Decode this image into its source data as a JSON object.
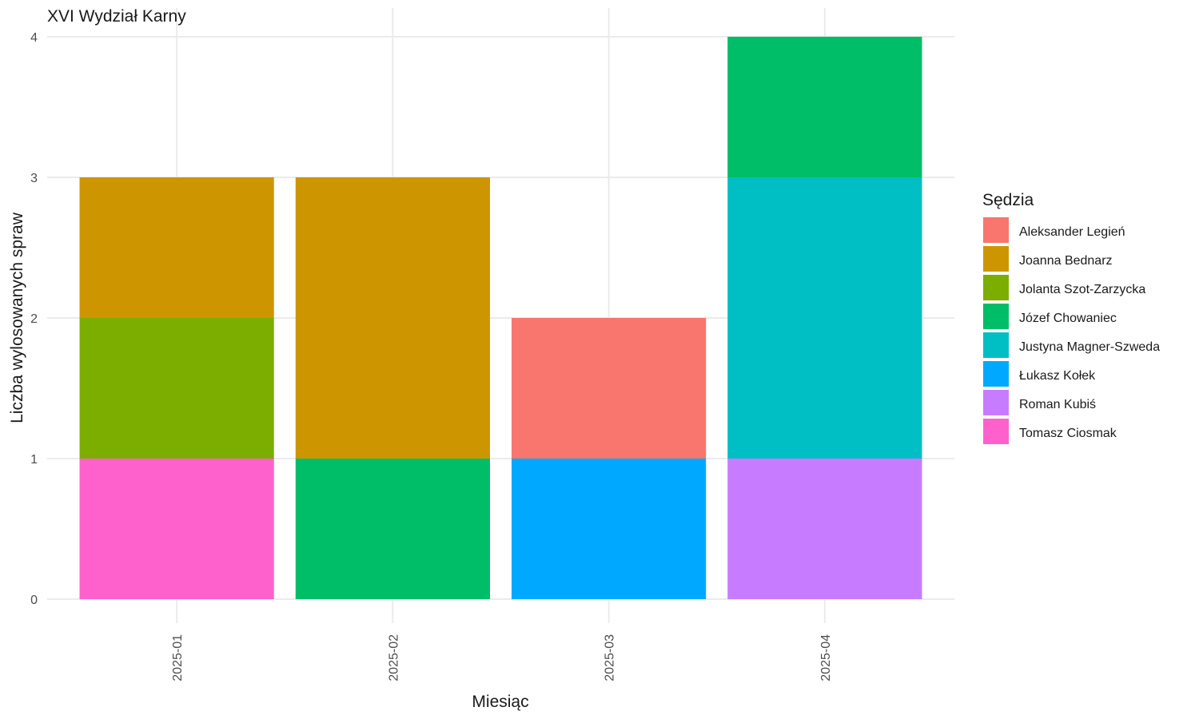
{
  "chart_data": {
    "type": "bar",
    "stacked": true,
    "title": "XVI Wydział Karny",
    "xlabel": "Miesiąc",
    "ylabel": "Liczba wylosowanych spraw",
    "ylim": [
      0,
      4
    ],
    "yticks": [
      0,
      1,
      2,
      3,
      4
    ],
    "categories": [
      "2025-01",
      "2025-02",
      "2025-03",
      "2025-04"
    ],
    "grid": true,
    "legend": {
      "title": "Sędzia",
      "position": "right"
    },
    "series": [
      {
        "name": "Aleksander Legień",
        "color": "#F8766D",
        "values": [
          0,
          0,
          1,
          0
        ]
      },
      {
        "name": "Joanna Bednarz",
        "color": "#CD9600",
        "values": [
          1,
          2,
          0,
          0
        ]
      },
      {
        "name": "Jolanta Szot-Zarzycka",
        "color": "#7CAE00",
        "values": [
          1,
          0,
          0,
          0
        ]
      },
      {
        "name": "Józef Chowaniec",
        "color": "#00BE67",
        "values": [
          0,
          1,
          0,
          1
        ]
      },
      {
        "name": "Justyna Magner-Szweda",
        "color": "#00BFC4",
        "values": [
          0,
          0,
          0,
          2
        ]
      },
      {
        "name": "Łukasz Kołek",
        "color": "#00A9FF",
        "values": [
          0,
          0,
          1,
          0
        ]
      },
      {
        "name": "Roman Kubiś",
        "color": "#C77CFF",
        "values": [
          0,
          0,
          0,
          1
        ]
      },
      {
        "name": "Tomasz Ciosmak",
        "color": "#FF61CC",
        "values": [
          1,
          0,
          0,
          0
        ]
      }
    ]
  }
}
